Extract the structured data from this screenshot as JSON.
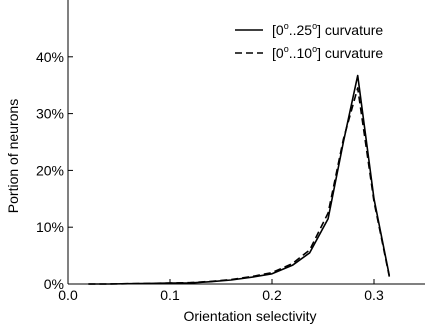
{
  "chart_data": {
    "type": "line",
    "xlabel": "Orientation selectivity",
    "ylabel": "Portion of neurons",
    "xlim": [
      0.0,
      0.35
    ],
    "ylim": [
      0,
      50
    ],
    "x_ticks": [
      0.0,
      0.1,
      0.2,
      0.3
    ],
    "x_tick_labels": [
      "0.0",
      "0.1",
      "0.2",
      "0.3"
    ],
    "y_ticks": [
      0,
      10,
      20,
      30,
      40
    ],
    "y_tick_labels": [
      "0%",
      "10%",
      "20%",
      "30%",
      "40%"
    ],
    "grid": false,
    "legend_position": "top-right",
    "series": [
      {
        "name": "[0°..25°] curvature",
        "legend_parts": [
          "[0",
          "°",
          "..25",
          "°",
          "] curvature"
        ],
        "style": "solid",
        "color": "#000000",
        "x": [
          0.02,
          0.04,
          0.06,
          0.08,
          0.1,
          0.12,
          0.14,
          0.16,
          0.18,
          0.2,
          0.22,
          0.237,
          0.255,
          0.27,
          0.284,
          0.3,
          0.315
        ],
        "values": [
          0.0,
          0.0,
          0.05,
          0.1,
          0.15,
          0.2,
          0.4,
          0.7,
          1.2,
          1.8,
          3.3,
          5.5,
          11.5,
          25.0,
          36.7,
          15.0,
          1.5
        ]
      },
      {
        "name": "[0°..10°] curvature",
        "legend_parts": [
          "[0",
          "°",
          "..10",
          "°",
          "] curvature"
        ],
        "style": "dashed",
        "color": "#000000",
        "x": [
          0.02,
          0.04,
          0.06,
          0.08,
          0.1,
          0.12,
          0.14,
          0.16,
          0.18,
          0.2,
          0.22,
          0.237,
          0.255,
          0.27,
          0.284,
          0.3,
          0.315
        ],
        "values": [
          0.0,
          0.0,
          0.05,
          0.1,
          0.15,
          0.25,
          0.45,
          0.8,
          1.3,
          2.0,
          3.6,
          6.0,
          12.5,
          25.5,
          34.5,
          14.5,
          1.3
        ]
      }
    ]
  }
}
